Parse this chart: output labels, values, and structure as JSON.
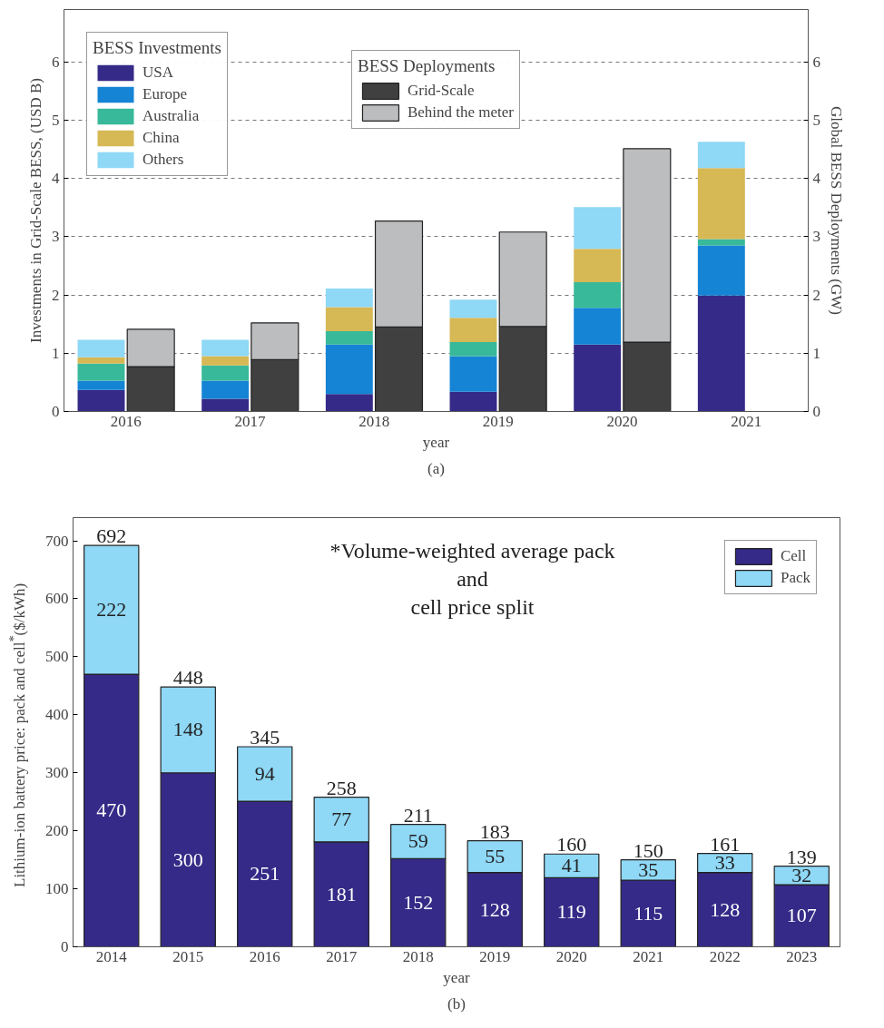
{
  "chart_data": [
    {
      "type": "bar",
      "stacked": true,
      "xlabel": "year",
      "ylabel": "Investments in Grid-Scale BESS, (USD B)",
      "y2label": "Global BESS Deployments (GW)",
      "legend_title": [
        "BESS Investments",
        "BESS Deployments"
      ],
      "categories": [
        "2016",
        "2017",
        "2018",
        "2019",
        "2020",
        "2021"
      ],
      "series": [
        {
          "name": "USA",
          "color": "#352a87",
          "values": [
            0.37,
            0.22,
            0.3,
            0.34,
            1.15,
            1.99
          ]
        },
        {
          "name": "Europe",
          "color": "#1584d4",
          "values": [
            0.16,
            0.31,
            0.85,
            0.61,
            0.63,
            0.86
          ]
        },
        {
          "name": "Australia",
          "color": "#38b99a",
          "values": [
            0.29,
            0.26,
            0.23,
            0.24,
            0.44,
            0.11
          ]
        },
        {
          "name": "China",
          "color": "#d6b855",
          "values": [
            0.11,
            0.16,
            0.41,
            0.42,
            0.57,
            1.22
          ]
        },
        {
          "name": "Others",
          "color": "#8fd8f6",
          "values": [
            0.3,
            0.28,
            0.32,
            0.31,
            0.72,
            0.45
          ]
        },
        {
          "name": "Grid-Scale",
          "color": "#404040",
          "axis": "y2",
          "values": [
            0.77,
            0.89,
            1.45,
            1.46,
            1.19,
            null
          ]
        },
        {
          "name": "Behind the meter",
          "color": "#bcbdbf",
          "axis": "y2",
          "values": [
            0.64,
            0.63,
            1.82,
            1.62,
            3.32,
            null
          ]
        }
      ],
      "ylim": [
        0,
        6.9
      ],
      "yticks": [
        0,
        1,
        2,
        3,
        4,
        5,
        6
      ],
      "y2lim": [
        0,
        6.9
      ],
      "y2ticks": [
        0,
        1,
        2,
        3,
        4,
        5,
        6
      ],
      "grid": "y",
      "legend": "top left",
      "annotations": [
        "(a)"
      ]
    },
    {
      "type": "bar",
      "stacked": true,
      "xlabel": "year",
      "ylabel": "Lithium-ion battery price: pack and cell$^{*}$($/kWh)",
      "categories": [
        "2014",
        "2015",
        "2016",
        "2017",
        "2018",
        "2019",
        "2020",
        "2021",
        "2022",
        "2023"
      ],
      "series": [
        {
          "name": "Cell",
          "color": "#352a87",
          "values": [
            470,
            300,
            251,
            181,
            152,
            128,
            119,
            115,
            128,
            107
          ]
        },
        {
          "name": "Pack",
          "color": "#8fd8f6",
          "values": [
            222,
            148,
            94,
            77,
            59,
            55,
            41,
            35,
            33,
            32
          ]
        }
      ],
      "data_labels": true,
      "totals": [
        "692",
        "448",
        "345",
        "258",
        "211",
        "183",
        "160",
        "150",
        "161",
        "139"
      ],
      "ylim": [
        0,
        740
      ],
      "yticks": [
        0,
        100,
        200,
        300,
        400,
        500,
        600,
        700
      ],
      "legend": "top right",
      "annotations": [
        "*Volume-weighted average pack\nand\ncell price split",
        "(b)"
      ]
    }
  ]
}
